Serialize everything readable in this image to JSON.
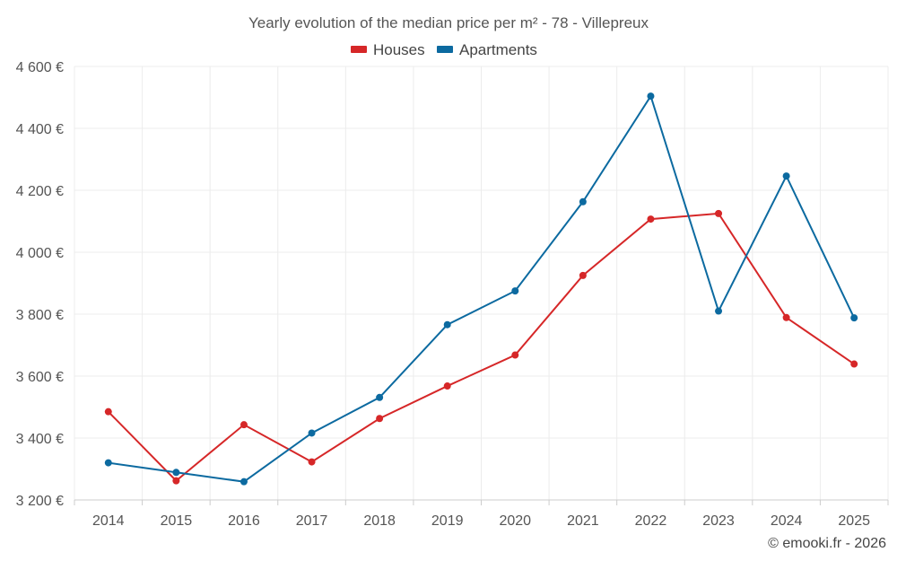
{
  "chart_data": {
    "type": "line",
    "title": "Yearly evolution of the median price per m² - 78 - Villepreux",
    "categories": [
      "2014",
      "2015",
      "2016",
      "2017",
      "2018",
      "2019",
      "2020",
      "2021",
      "2022",
      "2023",
      "2024",
      "2025"
    ],
    "series": [
      {
        "name": "Houses",
        "color": "#d62728",
        "values": [
          3485,
          3262,
          3443,
          3323,
          3463,
          3568,
          3668,
          3925,
          4107,
          4125,
          3789,
          3639
        ]
      },
      {
        "name": "Apartments",
        "color": "#0c6aa0",
        "values": [
          3320,
          3289,
          3259,
          3416,
          3531,
          3766,
          3875,
          4163,
          4504,
          3810,
          4246,
          3788
        ]
      }
    ],
    "ylim": [
      3200,
      4600
    ],
    "yticks": [
      3200,
      3400,
      3600,
      3800,
      4000,
      4200,
      4400,
      4600
    ],
    "ytick_labels": [
      "3 200 €",
      "3 400 €",
      "3 600 €",
      "3 800 €",
      "4 000 €",
      "4 200 €",
      "4 400 €",
      "4 600 €"
    ],
    "xlabel": "",
    "ylabel": "",
    "grid": true,
    "legend_position": "top-center"
  },
  "credit": "© emooki.fr - 2026"
}
